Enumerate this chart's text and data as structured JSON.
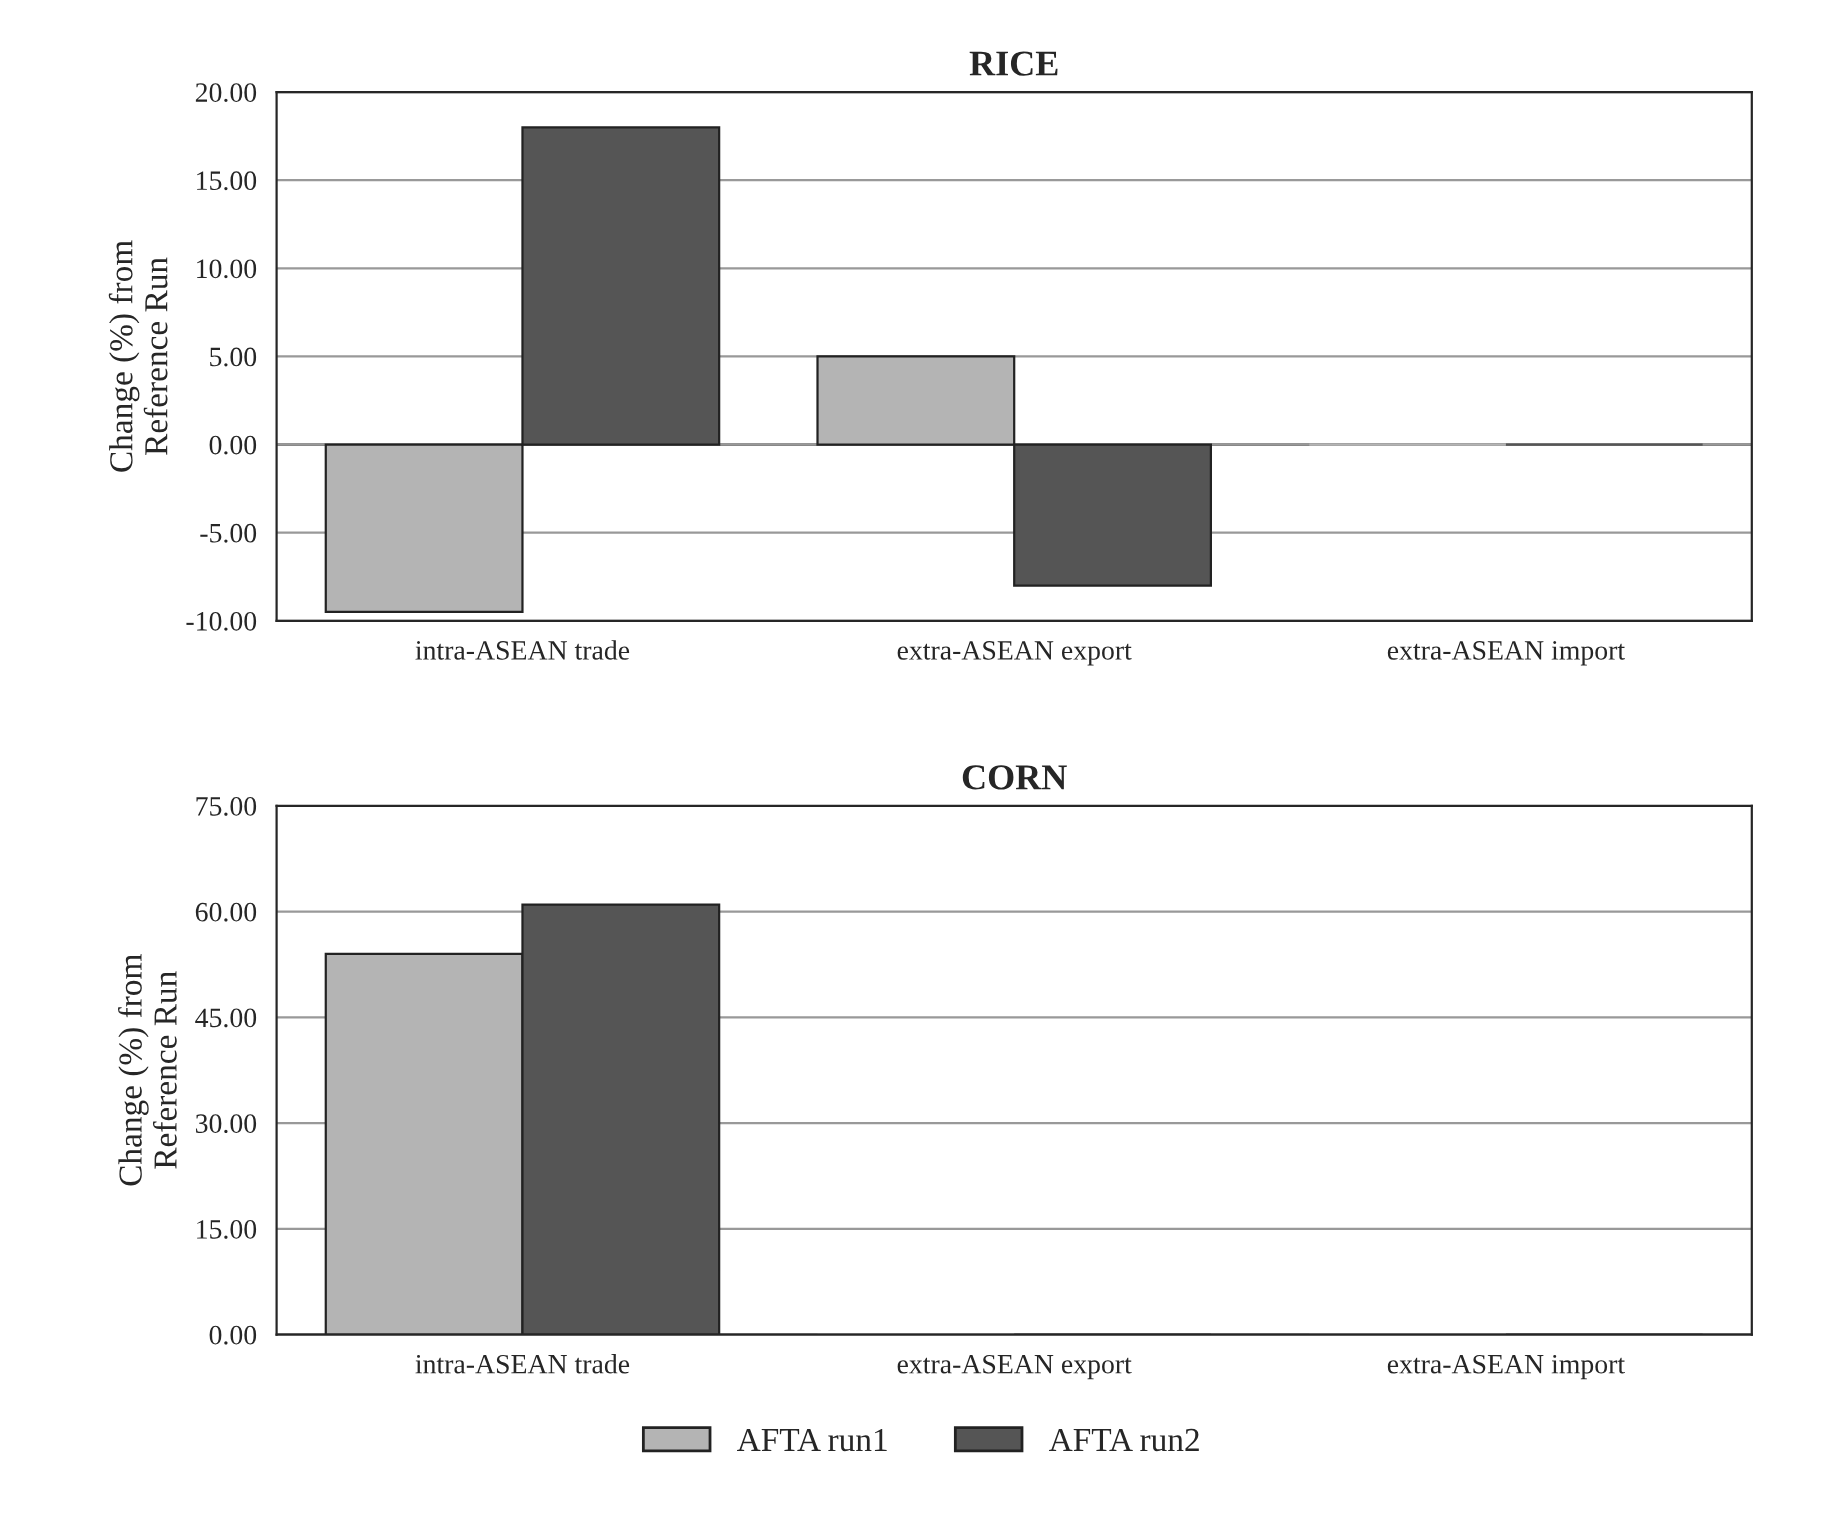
{
  "chart_data": [
    {
      "type": "bar",
      "title": "RICE",
      "ylabel": "Change (%) from\nReference Run",
      "categories": [
        "intra-ASEAN trade",
        "extra-ASEAN export",
        "extra-ASEAN import"
      ],
      "series": [
        {
          "name": "AFTA run1",
          "color": "#b4b4b4",
          "values": [
            -9.5,
            5,
            0
          ]
        },
        {
          "name": "AFTA run2",
          "color": "#555555",
          "values": [
            18,
            -8,
            0
          ]
        }
      ],
      "ylim": [
        -10,
        20
      ],
      "yticks": [
        {
          "value": -10,
          "label": "-10.00"
        },
        {
          "value": -5,
          "label": "-5.00"
        },
        {
          "value": 0,
          "label": "0.00"
        },
        {
          "value": 5,
          "label": "5.00"
        },
        {
          "value": 10,
          "label": "10.00"
        },
        {
          "value": 15,
          "label": "15.00"
        },
        {
          "value": 20,
          "label": "20.00"
        }
      ],
      "grid": "y",
      "legend": "bottom"
    },
    {
      "type": "bar",
      "title": "CORN",
      "ylabel": "Change (%) from\nReference Run",
      "categories": [
        "intra-ASEAN trade",
        "extra-ASEAN export",
        "extra-ASEAN import"
      ],
      "series": [
        {
          "name": "AFTA run1",
          "color": "#b4b4b4",
          "values": [
            54,
            0,
            0
          ]
        },
        {
          "name": "AFTA run2",
          "color": "#555555",
          "values": [
            61,
            0,
            0
          ]
        }
      ],
      "ylim": [
        0,
        75
      ],
      "yticks": [
        {
          "value": 0,
          "label": "0.00"
        },
        {
          "value": 15,
          "label": "15.00"
        },
        {
          "value": 30,
          "label": "30.00"
        },
        {
          "value": 45,
          "label": "45.00"
        },
        {
          "value": 60,
          "label": "60.00"
        },
        {
          "value": 75,
          "label": "75.00"
        }
      ],
      "grid": "y",
      "legend": "bottom"
    }
  ]
}
